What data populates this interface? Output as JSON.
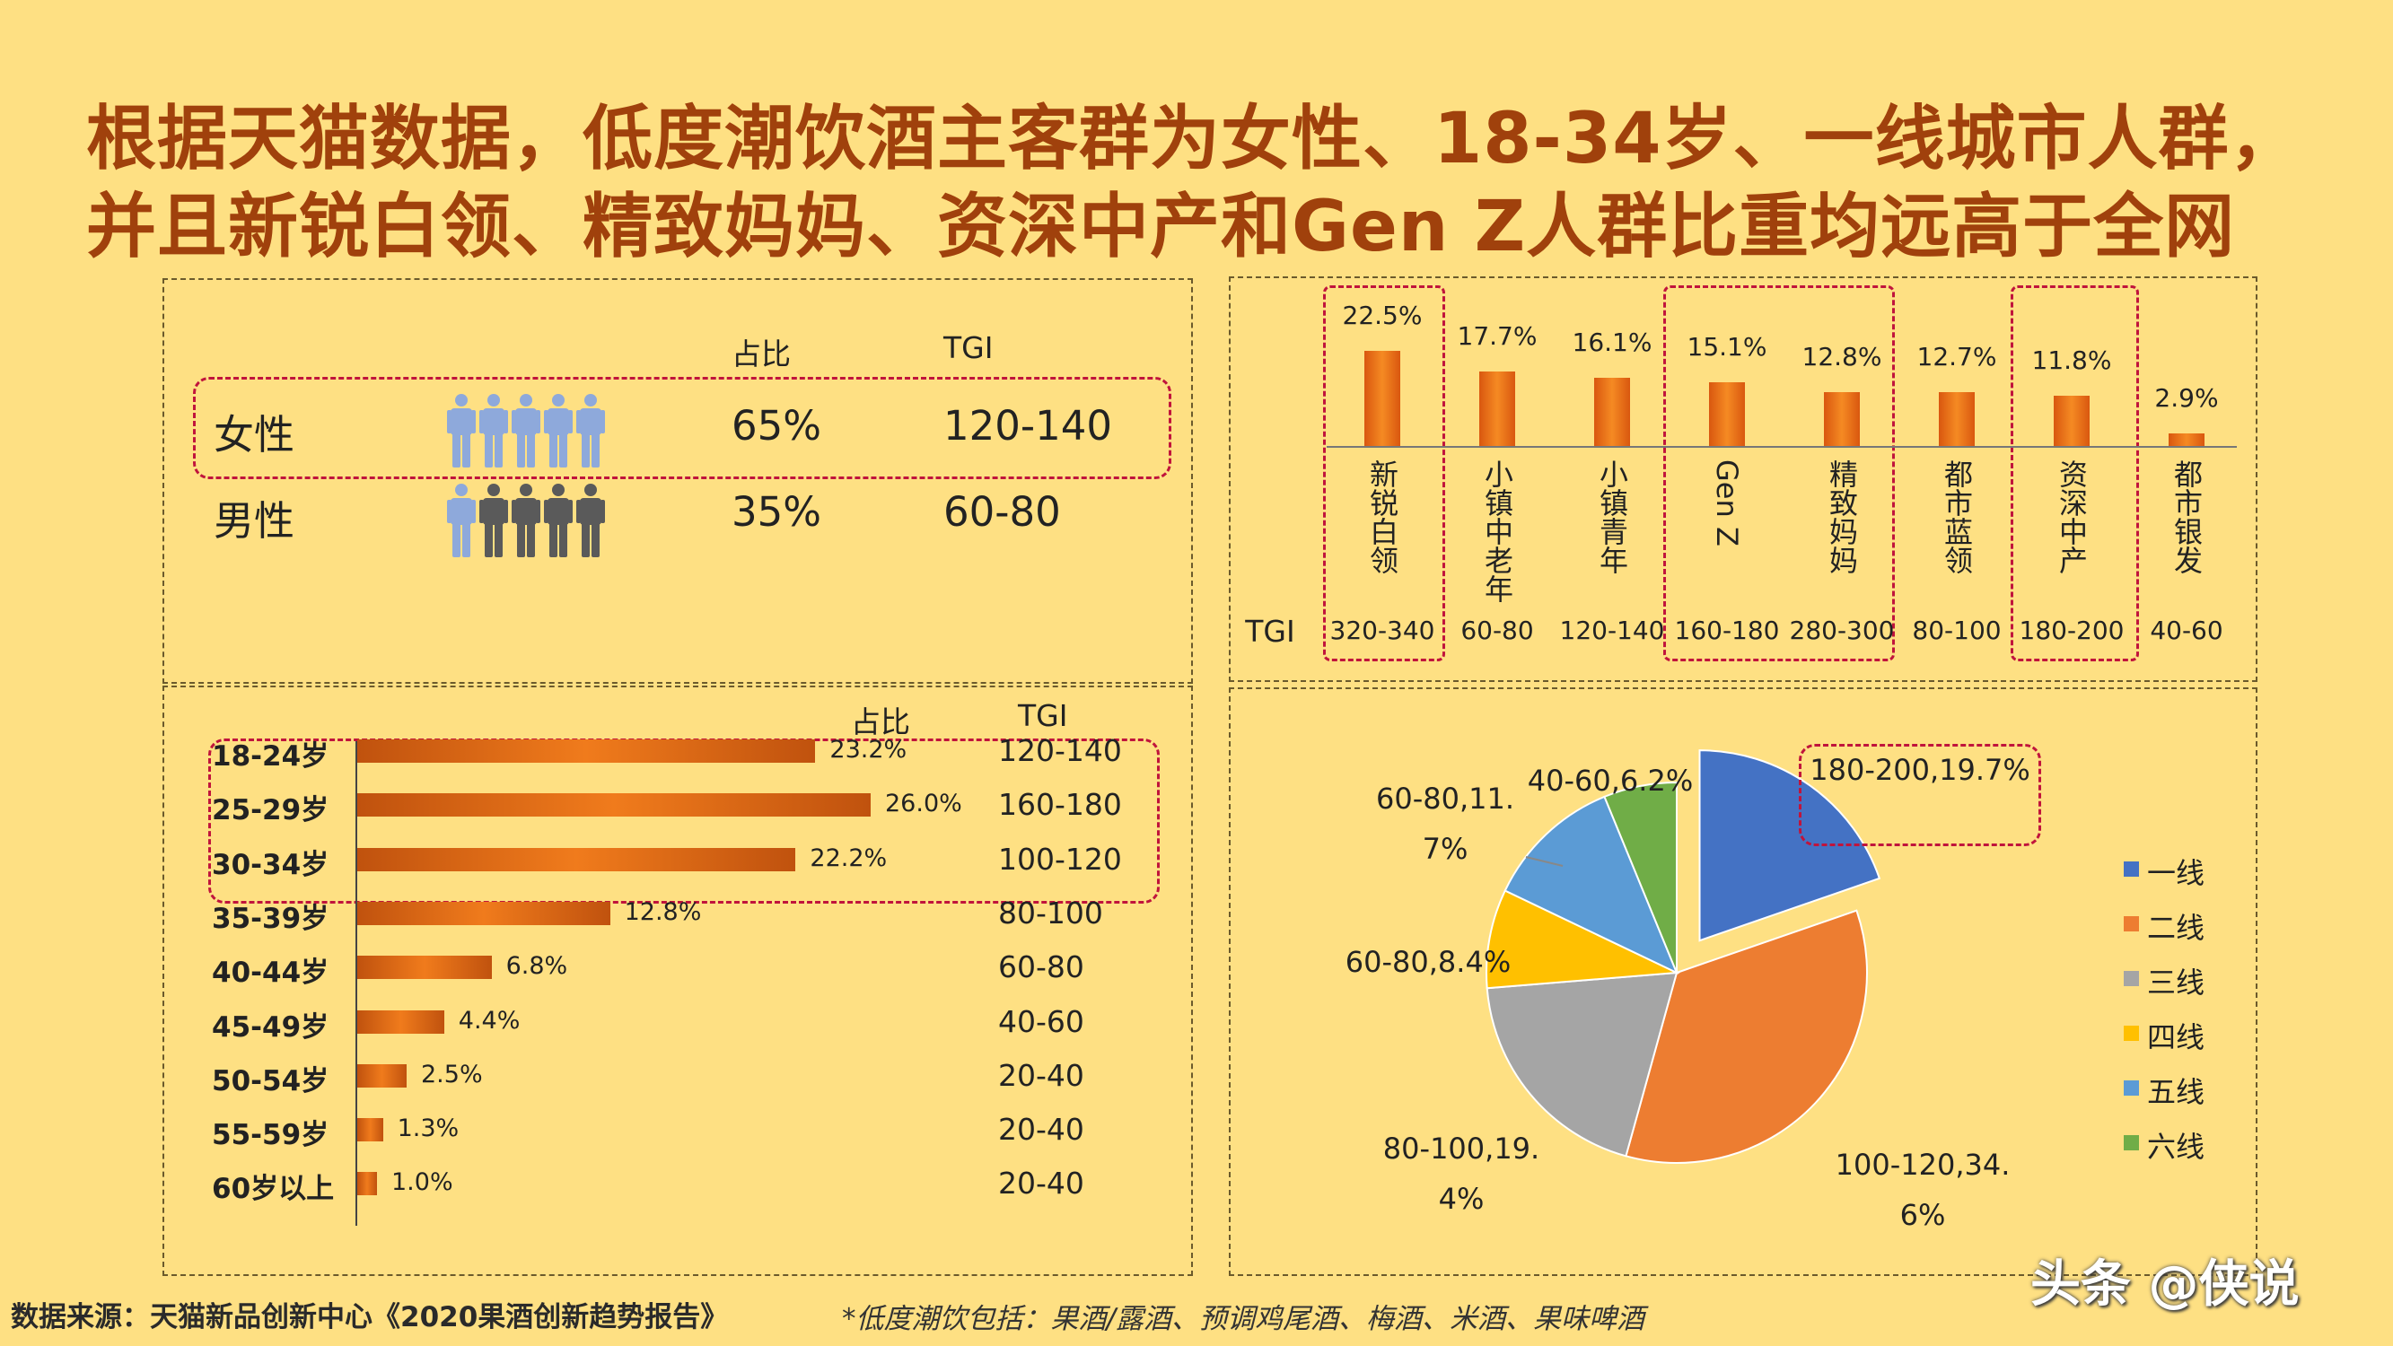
{
  "title_line1": "根据天猫数据，低度潮饮酒主客群为女性、18-34岁、一线城市人群，",
  "title_line2": "并且新锐白领、精致妈妈、资深中产和Gen Z人群比重均远高于全网",
  "gender": {
    "header_share": "占比",
    "header_tgi": "TGI",
    "rows": [
      {
        "label": "女性",
        "share": "65%",
        "tgi": "120-140"
      },
      {
        "label": "男性",
        "share": "35%",
        "tgi": "60-80"
      }
    ]
  },
  "age": {
    "header_share": "占比",
    "header_tgi": "TGI",
    "rows": [
      {
        "label": "18-24岁",
        "value": 23.2,
        "display": "23.2%",
        "tgi": "120-140"
      },
      {
        "label": "25-29岁",
        "value": 26.0,
        "display": "26.0%",
        "tgi": "160-180"
      },
      {
        "label": "30-34岁",
        "value": 22.2,
        "display": "22.2%",
        "tgi": "100-120"
      },
      {
        "label": "35-39岁",
        "value": 12.8,
        "display": "12.8%",
        "tgi": "80-100"
      },
      {
        "label": "40-44岁",
        "value": 6.8,
        "display": "6.8%",
        "tgi": "60-80"
      },
      {
        "label": "45-49岁",
        "value": 4.4,
        "display": "4.4%",
        "tgi": "40-60"
      },
      {
        "label": "50-54岁",
        "value": 2.5,
        "display": "2.5%",
        "tgi": "20-40"
      },
      {
        "label": "55-59岁",
        "value": 1.3,
        "display": "1.3%",
        "tgi": "20-40"
      },
      {
        "label": "60岁以上",
        "value": 1.0,
        "display": "1.0%",
        "tgi": "20-40"
      }
    ]
  },
  "segments": {
    "tgi_label": "TGI",
    "rows": [
      {
        "label": "新锐白领",
        "value": 22.5,
        "display": "22.5%",
        "tgi": "320-340"
      },
      {
        "label": "小镇中老年",
        "value": 17.7,
        "display": "17.7%",
        "tgi": "60-80"
      },
      {
        "label": "小镇青年",
        "value": 16.1,
        "display": "16.1%",
        "tgi": "120-140"
      },
      {
        "label": "Gen Z",
        "value": 15.1,
        "display": "15.1%",
        "tgi": "160-180"
      },
      {
        "label": "精致妈妈",
        "value": 12.8,
        "display": "12.8%",
        "tgi": "280-300"
      },
      {
        "label": "都市蓝领",
        "value": 12.7,
        "display": "12.7%",
        "tgi": "80-100"
      },
      {
        "label": "资深中产",
        "value": 11.8,
        "display": "11.8%",
        "tgi": "180-200"
      },
      {
        "label": "都市银发",
        "value": 2.9,
        "display": "2.9%",
        "tgi": "40-60"
      }
    ]
  },
  "city_pie": {
    "slices": [
      {
        "name": "一线",
        "value": 19.7,
        "label": "180-200,19.7%",
        "color": "#4472C4"
      },
      {
        "name": "二线",
        "value": 34.6,
        "label": "100-120,34.6%",
        "color": "#ED7D31"
      },
      {
        "name": "三线",
        "value": 19.4,
        "label": "80-100,19.4%",
        "color": "#A5A5A5"
      },
      {
        "name": "四线",
        "value": 8.4,
        "label": "60-80,8.4%",
        "color": "#FFC000"
      },
      {
        "name": "五线",
        "value": 11.7,
        "label": "60-80,11.7%",
        "color": "#5B9BD5"
      },
      {
        "name": "六线",
        "value": 6.2,
        "label": "40-60,6.2%",
        "color": "#70AD47"
      }
    ]
  },
  "chart_data": [
    {
      "type": "bar",
      "categories": [
        "女性",
        "男性"
      ],
      "values": [
        65,
        35
      ],
      "tgi": [
        "120-140",
        "60-80"
      ]
    },
    {
      "type": "bar",
      "orientation": "horizontal",
      "categories": [
        "18-24岁",
        "25-29岁",
        "30-34岁",
        "35-39岁",
        "40-44岁",
        "45-49岁",
        "50-54岁",
        "55-59岁",
        "60岁以上"
      ],
      "values": [
        23.2,
        26.0,
        22.2,
        12.8,
        6.8,
        4.4,
        2.5,
        1.3,
        1.0
      ],
      "tgi": [
        "120-140",
        "160-180",
        "100-120",
        "80-100",
        "60-80",
        "40-60",
        "20-40",
        "20-40",
        "20-40"
      ]
    },
    {
      "type": "bar",
      "categories": [
        "新锐白领",
        "小镇中老年",
        "小镇青年",
        "Gen Z",
        "精致妈妈",
        "都市蓝领",
        "资深中产",
        "都市银发"
      ],
      "values": [
        22.5,
        17.7,
        16.1,
        15.1,
        12.8,
        12.7,
        11.8,
        2.9
      ],
      "tgi": [
        "320-340",
        "60-80",
        "120-140",
        "160-180",
        "280-300",
        "80-100",
        "180-200",
        "40-60"
      ]
    },
    {
      "type": "pie",
      "categories": [
        "一线",
        "二线",
        "三线",
        "四线",
        "五线",
        "六线"
      ],
      "values": [
        19.7,
        34.6,
        19.4,
        8.4,
        11.7,
        6.2
      ],
      "tgi": [
        "180-200",
        "100-120",
        "80-100",
        "60-80",
        "60-80",
        "40-60"
      ],
      "legend": "right"
    }
  ],
  "footer": {
    "source": "数据来源：天猫新品创新中心《2020果酒创新趋势报告》",
    "note": "*低度潮饮包括：果酒/露酒、预调鸡尾酒、梅酒、米酒、果味啤酒"
  },
  "watermark": "头条 @侠说"
}
